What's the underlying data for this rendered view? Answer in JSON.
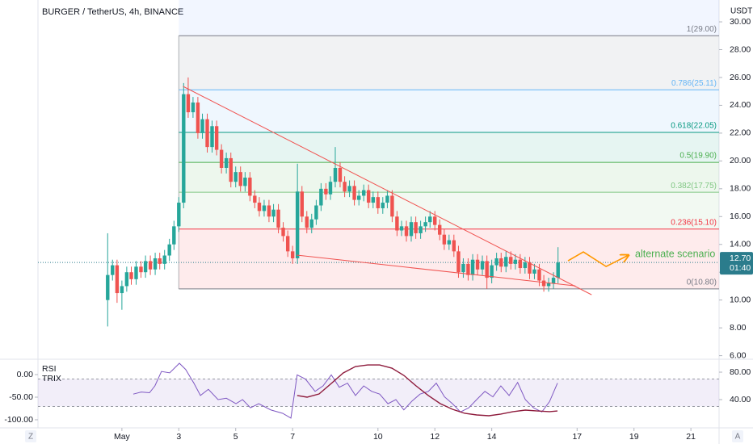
{
  "chart_data": [
    {
      "type": "candlestick",
      "title": "BURGER / TetherUS, 4h, BINANCE",
      "y_axis_label": "USDT",
      "x": [
        0.5,
        0.67,
        0.83,
        1,
        1.17,
        1.33,
        1.5,
        1.67,
        1.83,
        2,
        2.17,
        2.33,
        2.5,
        2.67,
        2.83,
        3,
        3.17,
        3.33,
        3.5,
        3.67,
        3.83,
        4,
        4.17,
        4.33,
        4.5,
        4.67,
        4.83,
        5,
        5.17,
        5.33,
        5.5,
        5.67,
        5.83,
        6,
        6.17,
        6.33,
        6.5,
        6.67,
        6.83,
        7,
        7.17,
        7.33,
        7.5,
        7.67,
        7.83,
        8,
        8.17,
        8.33,
        8.5,
        8.67,
        8.83,
        9,
        9.17,
        9.33,
        9.5,
        9.67,
        9.83,
        10,
        10.17,
        10.33,
        10.5,
        10.67,
        10.83,
        11,
        11.17,
        11.33,
        11.5,
        11.67,
        11.83,
        12,
        12.17,
        12.33,
        12.5,
        12.67,
        12.83,
        13,
        13.17,
        13.33,
        13.5,
        13.67,
        13.83,
        14,
        14.17,
        14.33,
        14.5,
        14.67,
        14.83,
        15,
        15.17,
        15.33,
        15.5,
        15.67,
        15.83,
        16,
        16.17,
        16.33
      ],
      "open": [
        10.0,
        11.8,
        12.5,
        10.5,
        11.0,
        12.0,
        11.5,
        12.4,
        12.0,
        12.8,
        12.2,
        13.0,
        12.6,
        13.2,
        14.0,
        15.3,
        17.0,
        24.8,
        23.5,
        24.2,
        22.0,
        23.0,
        21.0,
        22.5,
        20.8,
        19.5,
        20.2,
        18.5,
        19.2,
        18.2,
        18.8,
        17.5,
        17.0,
        16.4,
        16.8,
        16.0,
        16.5,
        15.2,
        14.6,
        13.5,
        13.0,
        17.8,
        16.0,
        15.2,
        15.8,
        16.8,
        18.0,
        17.6,
        18.5,
        19.5,
        18.5,
        17.8,
        18.2,
        17.2,
        17.5,
        17.9,
        17.0,
        17.4,
        16.6,
        17.0,
        17.5,
        16.0,
        15.0,
        15.3,
        14.6,
        15.6,
        14.8,
        15.3,
        15.6,
        16.0,
        15.4,
        14.7,
        14.0,
        14.3,
        13.5,
        12.0,
        12.6,
        11.8,
        12.9,
        12.2,
        12.8,
        11.6,
        12.5,
        13.0,
        12.4,
        13.1,
        12.6,
        12.9,
        12.3,
        12.7,
        11.9,
        12.2,
        11.4,
        11.0,
        11.2,
        11.6
      ],
      "high": [
        14.8,
        12.9,
        12.9,
        11.4,
        12.4,
        12.4,
        12.8,
        12.8,
        13.2,
        13.2,
        13.4,
        13.4,
        13.6,
        14.4,
        15.7,
        17.4,
        25.6,
        26.0,
        24.6,
        24.6,
        23.4,
        23.4,
        22.9,
        22.9,
        21.2,
        20.6,
        20.6,
        19.6,
        19.6,
        19.2,
        19.2,
        17.9,
        17.4,
        17.2,
        17.2,
        16.9,
        16.9,
        15.6,
        15.0,
        13.9,
        19.8,
        18.2,
        16.4,
        16.2,
        17.2,
        18.4,
        18.4,
        18.9,
        21.0,
        19.9,
        18.9,
        18.6,
        18.6,
        17.9,
        18.3,
        18.3,
        17.8,
        17.8,
        17.4,
        17.9,
        17.9,
        16.4,
        15.7,
        15.7,
        16.0,
        16.0,
        15.7,
        16.0,
        16.4,
        16.4,
        15.8,
        15.1,
        14.7,
        14.7,
        13.9,
        13.0,
        13.0,
        13.3,
        13.3,
        13.2,
        13.2,
        12.9,
        13.4,
        13.4,
        13.5,
        13.5,
        13.3,
        13.3,
        13.1,
        13.1,
        12.6,
        12.6,
        11.8,
        11.6,
        12.0,
        13.8
      ],
      "low": [
        8.1,
        11.4,
        9.8,
        9.3,
        10.6,
        11.1,
        11.1,
        11.6,
        11.6,
        11.8,
        11.8,
        12.2,
        12.2,
        12.8,
        13.6,
        14.9,
        16.6,
        23.1,
        23.1,
        21.6,
        21.6,
        20.6,
        20.6,
        20.4,
        19.1,
        19.1,
        18.1,
        18.1,
        17.8,
        17.8,
        17.1,
        16.6,
        16.0,
        16.0,
        15.6,
        15.6,
        14.8,
        14.2,
        13.1,
        12.6,
        12.6,
        15.6,
        14.8,
        14.8,
        15.4,
        16.4,
        17.2,
        17.2,
        18.1,
        18.1,
        17.4,
        17.4,
        16.8,
        16.8,
        17.1,
        16.6,
        16.6,
        16.2,
        16.2,
        16.6,
        15.6,
        14.6,
        14.6,
        14.2,
        14.2,
        14.4,
        14.4,
        14.9,
        15.2,
        15.0,
        14.3,
        13.6,
        13.6,
        13.1,
        11.6,
        11.6,
        11.4,
        11.4,
        11.8,
        11.8,
        10.8,
        11.2,
        12.1,
        12.0,
        12.0,
        12.2,
        12.2,
        11.9,
        11.9,
        11.5,
        11.5,
        11.0,
        10.6,
        10.6,
        10.8,
        11.2
      ],
      "close": [
        11.8,
        12.5,
        10.5,
        11.0,
        12.0,
        11.5,
        12.4,
        12.0,
        12.8,
        12.2,
        13.0,
        12.6,
        13.2,
        14.0,
        15.3,
        17.0,
        24.8,
        23.5,
        24.2,
        22.0,
        23.0,
        21.0,
        22.5,
        20.8,
        19.5,
        20.2,
        18.5,
        19.2,
        18.2,
        18.8,
        17.5,
        17.0,
        16.4,
        16.8,
        16.0,
        16.5,
        15.2,
        14.6,
        13.5,
        13.0,
        17.8,
        16.0,
        15.2,
        15.8,
        16.8,
        18.0,
        17.6,
        18.5,
        19.5,
        18.5,
        17.8,
        18.2,
        17.2,
        17.5,
        17.9,
        17.0,
        17.4,
        16.6,
        17.0,
        17.5,
        16.0,
        15.0,
        15.3,
        14.6,
        15.6,
        14.8,
        15.3,
        15.6,
        16.0,
        15.4,
        14.7,
        14.0,
        14.3,
        13.5,
        12.0,
        12.6,
        11.8,
        12.9,
        12.2,
        12.8,
        11.6,
        12.5,
        13.0,
        12.4,
        13.1,
        12.6,
        12.9,
        12.3,
        12.7,
        11.9,
        12.2,
        11.4,
        11.0,
        11.2,
        11.6,
        12.7
      ],
      "up_color": "#26a69a",
      "down_color": "#ef5350",
      "xlim": [
        -1.95,
        21.99
      ],
      "xticks": [
        {
          "value": 1,
          "label": "May"
        },
        3,
        5,
        7,
        10,
        12,
        14,
        17,
        19,
        21
      ],
      "ylim": [
        5.86,
        31.57
      ],
      "yticks": [
        {
          "value": 6,
          "label": "6.00"
        },
        {
          "value": 8,
          "label": "8.00"
        },
        {
          "value": 10,
          "label": "10.00"
        },
        {
          "value": 12,
          "label": "12.00"
        },
        {
          "value": 14,
          "label": "14.00"
        },
        {
          "value": 16,
          "label": "16.00"
        },
        {
          "value": 18,
          "label": "18.00"
        },
        {
          "value": 20,
          "label": "20.00"
        },
        {
          "value": 22,
          "label": "22.00"
        },
        {
          "value": 24,
          "label": "24.00"
        },
        {
          "value": 26,
          "label": "26.00"
        },
        {
          "value": 28,
          "label": "28.00"
        },
        {
          "value": 30,
          "label": "30.00"
        }
      ],
      "last_price": {
        "value": 12.7,
        "label": "12.70",
        "countdown": "01:40",
        "color": "#2b7c8c"
      },
      "fib": {
        "x_start": 3.0,
        "levels": [
          {
            "price": 29.0,
            "label": "1(29.00)",
            "color": "#787b86"
          },
          {
            "price": 25.11,
            "label": "0.786(25.11)",
            "color": "#64b5f6"
          },
          {
            "price": 22.05,
            "label": "0.618(22.05)",
            "color": "#089981"
          },
          {
            "price": 19.9,
            "label": "0.5(19.90)",
            "color": "#4caf50"
          },
          {
            "price": 17.75,
            "label": "0.382(17.75)",
            "color": "#81c784"
          },
          {
            "price": 15.1,
            "label": "0.236(15.10)",
            "color": "#f23645"
          },
          {
            "price": 10.8,
            "label": "0(10.80)",
            "color": "#787b86"
          }
        ]
      },
      "trendlines": [
        {
          "color": "#f05350",
          "x": [
            3.15,
            17.51
          ],
          "y": [
            25.36,
            10.38
          ]
        },
        {
          "color": "#f05350",
          "x": [
            7.14,
            16.94
          ],
          "y": [
            13.23,
            11.02
          ]
        }
      ],
      "annotation": {
        "text": "alternate scenario",
        "color": "#4caf50",
        "arrow_color": "#ff9800",
        "x": [
          16.68,
          17.22,
          18.02,
          18.81
        ],
        "y": [
          12.82,
          13.46,
          12.41,
          13.23
        ]
      }
    },
    {
      "type": "line",
      "series": [
        {
          "name": "RSI",
          "color": "#7e57c2",
          "axis": "y2",
          "x": [
            1.4,
            1.68,
            1.97,
            2.16,
            2.39,
            2.68,
            3.02,
            3.24,
            3.53,
            3.76,
            4.04,
            4.38,
            4.67,
            5.01,
            5.24,
            5.52,
            5.81,
            6.23,
            6.65,
            6.94,
            7.16,
            7.45,
            7.79,
            8.07,
            8.36,
            8.64,
            8.93,
            9.21,
            9.5,
            9.78,
            10.06,
            10.35,
            10.63,
            10.91,
            11.2,
            11.48,
            11.77,
            12.05,
            12.34,
            12.62,
            12.9,
            13.19,
            13.47,
            13.76,
            14.04,
            14.32,
            14.61,
            14.91,
            15.18,
            15.47,
            15.76,
            16.03,
            16.31
          ],
          "values": [
            48,
            51,
            50,
            60,
            81,
            79,
            93,
            84,
            64,
            46,
            55,
            40,
            42,
            34,
            40,
            28,
            34,
            25,
            20,
            13,
            76,
            70,
            52,
            60,
            76,
            58,
            64,
            46,
            60,
            52,
            48,
            34,
            40,
            25,
            38,
            48,
            52,
            64,
            44,
            34,
            22,
            28,
            40,
            52,
            44,
            60,
            46,
            65,
            40,
            28,
            22,
            37,
            64
          ]
        },
        {
          "name": "TRIX",
          "color": "#8e1b3c",
          "x": [
            7.16,
            7.51,
            7.93,
            8.36,
            8.78,
            9.21,
            9.64,
            10.06,
            10.49,
            10.91,
            11.34,
            11.77,
            12.19,
            12.62,
            13.05,
            13.47,
            13.9,
            14.32,
            14.75,
            15.18,
            15.6,
            16.03,
            16.31
          ],
          "values": [
            -46.4,
            -50,
            -42.9,
            -19.6,
            3.6,
            17.9,
            21.4,
            21.4,
            14.3,
            -1.8,
            -25,
            -46.4,
            -64.3,
            -76.8,
            -85.7,
            -89.3,
            -91.1,
            -87.5,
            -82.1,
            -78.6,
            -80.4,
            -82.1,
            -80.4
          ]
        }
      ],
      "xlim": [
        -1.95,
        21.99
      ],
      "ylim": [
        -117.9,
        30.4
      ],
      "yticks": [
        {
          "value": -100,
          "label": "-100.00"
        },
        {
          "value": -50,
          "label": "-50.00"
        },
        {
          "value": 0,
          "label": "0.00"
        }
      ],
      "y2lim": [
        -1.2,
        96.5
      ],
      "y2ticks": [
        {
          "value": 40,
          "label": "40.00"
        },
        {
          "value": 80,
          "label": "80.00"
        }
      ],
      "rsi_bands": [
        30,
        70
      ],
      "band_color": "#7e57c2"
    }
  ],
  "controls": {
    "left": "Z",
    "right": "A"
  }
}
